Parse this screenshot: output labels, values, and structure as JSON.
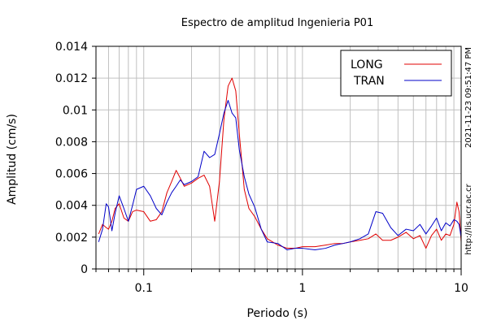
{
  "chart_data": {
    "type": "line",
    "title": "Espectro de amplitud Ingenieria P01",
    "xlabel": "Periodo (s)",
    "ylabel": "Amplitud (cm/s)",
    "xscale": "log",
    "xlim": [
      0.05,
      10
    ],
    "ylim": [
      0,
      0.014
    ],
    "x_ticks": [
      {
        "value": 0.1,
        "label": "0.1"
      },
      {
        "value": 1,
        "label": "1"
      },
      {
        "value": 10,
        "label": "10"
      }
    ],
    "y_ticks": [
      {
        "value": 0,
        "label": "0"
      },
      {
        "value": 0.002,
        "label": "0.002"
      },
      {
        "value": 0.004,
        "label": "0.004"
      },
      {
        "value": 0.006,
        "label": "0.006"
      },
      {
        "value": 0.008,
        "label": "0.008"
      },
      {
        "value": 0.01,
        "label": "0.01"
      },
      {
        "value": 0.012,
        "label": "0.012"
      },
      {
        "value": 0.014,
        "label": "0.014"
      }
    ],
    "grid": true,
    "legend_position": "top-right",
    "series": [
      {
        "name": "LONG",
        "color": "#e00000",
        "x": [
          0.052,
          0.055,
          0.058,
          0.06,
          0.063,
          0.066,
          0.07,
          0.075,
          0.08,
          0.085,
          0.09,
          0.1,
          0.11,
          0.12,
          0.13,
          0.14,
          0.15,
          0.16,
          0.17,
          0.18,
          0.2,
          0.22,
          0.24,
          0.26,
          0.28,
          0.3,
          0.32,
          0.34,
          0.36,
          0.38,
          0.4,
          0.43,
          0.46,
          0.5,
          0.55,
          0.6,
          0.7,
          0.8,
          0.9,
          1.0,
          1.2,
          1.4,
          1.6,
          1.8,
          2.0,
          2.3,
          2.6,
          2.9,
          3.2,
          3.6,
          4.0,
          4.5,
          5.0,
          5.5,
          6.0,
          6.5,
          7.0,
          7.5,
          8.0,
          8.5,
          9.0,
          9.4,
          9.7,
          10.0
        ],
        "y": [
          0.0022,
          0.0028,
          0.0026,
          0.0025,
          0.003,
          0.0038,
          0.0041,
          0.0032,
          0.003,
          0.0036,
          0.0037,
          0.0036,
          0.003,
          0.0031,
          0.0036,
          0.0048,
          0.0055,
          0.0062,
          0.0057,
          0.0052,
          0.0054,
          0.0057,
          0.0059,
          0.0052,
          0.003,
          0.0055,
          0.0094,
          0.0115,
          0.012,
          0.0112,
          0.0085,
          0.005,
          0.0038,
          0.0033,
          0.0025,
          0.0019,
          0.0015,
          0.0013,
          0.0013,
          0.0014,
          0.0014,
          0.0015,
          0.0016,
          0.0016,
          0.0017,
          0.0018,
          0.0019,
          0.0022,
          0.0018,
          0.0018,
          0.002,
          0.0023,
          0.0019,
          0.0021,
          0.0013,
          0.0021,
          0.0025,
          0.0018,
          0.0022,
          0.0021,
          0.0028,
          0.0042,
          0.0036,
          0.0017
        ]
      },
      {
        "name": "TRAN",
        "color": "#0000c8",
        "x": [
          0.052,
          0.055,
          0.058,
          0.06,
          0.063,
          0.066,
          0.07,
          0.075,
          0.08,
          0.085,
          0.09,
          0.1,
          0.11,
          0.12,
          0.13,
          0.14,
          0.15,
          0.16,
          0.17,
          0.18,
          0.2,
          0.22,
          0.24,
          0.26,
          0.28,
          0.3,
          0.32,
          0.34,
          0.36,
          0.38,
          0.4,
          0.43,
          0.46,
          0.5,
          0.55,
          0.6,
          0.7,
          0.8,
          0.9,
          1.0,
          1.2,
          1.4,
          1.6,
          1.8,
          2.0,
          2.3,
          2.6,
          2.9,
          3.2,
          3.6,
          4.0,
          4.5,
          5.0,
          5.5,
          6.0,
          6.5,
          7.0,
          7.5,
          8.0,
          8.5,
          9.0,
          9.4,
          9.7,
          10.0
        ],
        "y": [
          0.0017,
          0.0025,
          0.0041,
          0.0039,
          0.0024,
          0.0035,
          0.0046,
          0.0038,
          0.003,
          0.004,
          0.005,
          0.0052,
          0.0046,
          0.0038,
          0.0034,
          0.0042,
          0.0048,
          0.0052,
          0.0056,
          0.0053,
          0.0055,
          0.0058,
          0.0074,
          0.007,
          0.0072,
          0.0085,
          0.0098,
          0.0106,
          0.0098,
          0.0095,
          0.0075,
          0.0058,
          0.0047,
          0.0039,
          0.0025,
          0.0017,
          0.0016,
          0.0012,
          0.0013,
          0.0013,
          0.0012,
          0.0013,
          0.0015,
          0.0016,
          0.0017,
          0.0019,
          0.0022,
          0.0036,
          0.0035,
          0.0026,
          0.0021,
          0.0025,
          0.0024,
          0.0028,
          0.0022,
          0.0027,
          0.0032,
          0.0024,
          0.0029,
          0.0027,
          0.0031,
          0.003,
          0.0028,
          0.002
        ]
      }
    ]
  },
  "side_text": {
    "timestamp": "2021-11-23 09:51:47 PM",
    "url": "http://lis.ucr.ac.cr"
  }
}
